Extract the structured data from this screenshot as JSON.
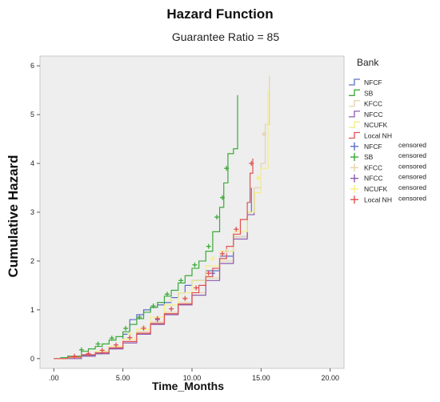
{
  "chart_data": {
    "type": "line",
    "title": "Hazard Function",
    "subtitle": "Guarantee Ratio = 85",
    "xlabel": "Time_Months",
    "ylabel": "Cumulative Hazard",
    "xlim": [
      -1,
      21
    ],
    "ylim": [
      -0.2,
      6.2
    ],
    "x_ticks": [
      {
        "value": 0,
        "label": ".00"
      },
      {
        "value": 5,
        "label": "5.00"
      },
      {
        "value": 10,
        "label": "10.00"
      },
      {
        "value": 15,
        "label": "15.00"
      },
      {
        "value": 20,
        "label": "20.00"
      }
    ],
    "y_ticks": [
      {
        "value": 0,
        "label": "0"
      },
      {
        "value": 1,
        "label": "1"
      },
      {
        "value": 2,
        "label": "2"
      },
      {
        "value": 3,
        "label": "3"
      },
      {
        "value": 4,
        "label": "4"
      },
      {
        "value": 5,
        "label": "5"
      },
      {
        "value": 6,
        "label": "6"
      }
    ],
    "grid": false,
    "legend": {
      "title": "Bank",
      "placement": "right",
      "entries": [
        {
          "label": "NFCF",
          "suffix": "",
          "color": "#5b6fc6",
          "kind": "step"
        },
        {
          "label": "SB",
          "suffix": "",
          "color": "#3aaa3a",
          "kind": "step"
        },
        {
          "label": "KFCC",
          "suffix": "",
          "color": "#e8d2a8",
          "kind": "step"
        },
        {
          "label": "NFCC",
          "suffix": "",
          "color": "#8c5bb0",
          "kind": "step"
        },
        {
          "label": "NCUFK",
          "suffix": "",
          "color": "#f5ef80",
          "kind": "step"
        },
        {
          "label": "Local  NH",
          "suffix": "",
          "color": "#e2504f",
          "kind": "step"
        },
        {
          "label": "NFCF",
          "suffix": "censored",
          "color": "#5b6fc6",
          "kind": "censor"
        },
        {
          "label": "SB",
          "suffix": "censored",
          "color": "#3aaa3a",
          "kind": "censor"
        },
        {
          "label": "KFCC",
          "suffix": "censored",
          "color": "#e8d2a8",
          "kind": "censor"
        },
        {
          "label": "NFCC",
          "suffix": "censored",
          "color": "#8c5bb0",
          "kind": "censor"
        },
        {
          "label": "NCUFK",
          "suffix": "censored",
          "color": "#f5ef80",
          "kind": "censor"
        },
        {
          "label": "Local NH",
          "suffix": "censored",
          "color": "#e2504f",
          "kind": "censor"
        }
      ]
    },
    "series": [
      {
        "name": "NFCF",
        "color": "#5b6fc6",
        "points": [
          [
            0,
            0
          ],
          [
            1,
            0.03
          ],
          [
            2,
            0.06
          ],
          [
            3,
            0.1
          ],
          [
            3.5,
            0.15
          ],
          [
            4,
            0.2
          ],
          [
            4.5,
            0.22
          ],
          [
            5,
            0.5
          ],
          [
            5.5,
            0.8
          ],
          [
            6,
            0.9
          ],
          [
            6.5,
            1.0
          ],
          [
            7,
            1.05
          ],
          [
            7.5,
            1.1
          ],
          [
            8,
            1.15
          ],
          [
            8.5,
            1.25
          ],
          [
            9,
            1.35
          ],
          [
            9.5,
            1.5
          ],
          [
            10,
            1.6
          ],
          [
            11,
            1.8
          ],
          [
            12,
            2.1
          ],
          [
            13,
            2.5
          ],
          [
            14,
            3.0
          ],
          [
            14.3,
            3.5
          ]
        ],
        "censored": []
      },
      {
        "name": "SB",
        "color": "#3aaa3a",
        "points": [
          [
            0,
            0
          ],
          [
            0.5,
            0.02
          ],
          [
            1,
            0.05
          ],
          [
            2,
            0.15
          ],
          [
            2.5,
            0.2
          ],
          [
            3,
            0.25
          ],
          [
            3.5,
            0.3
          ],
          [
            4,
            0.38
          ],
          [
            4.5,
            0.45
          ],
          [
            5,
            0.55
          ],
          [
            5.5,
            0.7
          ],
          [
            6,
            0.82
          ],
          [
            6.5,
            0.95
          ],
          [
            7,
            1.05
          ],
          [
            7.5,
            1.15
          ],
          [
            8,
            1.28
          ],
          [
            8.5,
            1.4
          ],
          [
            9,
            1.55
          ],
          [
            9.5,
            1.7
          ],
          [
            10,
            1.85
          ],
          [
            10.5,
            2.0
          ],
          [
            11,
            2.2
          ],
          [
            11.5,
            2.6
          ],
          [
            12,
            3.1
          ],
          [
            12.3,
            3.6
          ],
          [
            12.6,
            4.2
          ],
          [
            13,
            4.3
          ],
          [
            13.3,
            5.4
          ]
        ],
        "censored": [
          [
            2,
            0.18
          ],
          [
            3.2,
            0.3
          ],
          [
            4.2,
            0.42
          ],
          [
            5.2,
            0.62
          ],
          [
            6.2,
            0.85
          ],
          [
            7.2,
            1.08
          ],
          [
            8.2,
            1.32
          ],
          [
            9.2,
            1.6
          ],
          [
            10.2,
            1.92
          ],
          [
            11.2,
            2.3
          ],
          [
            11.8,
            2.9
          ],
          [
            12.2,
            3.3
          ],
          [
            12.5,
            3.9
          ]
        ]
      },
      {
        "name": "KFCC",
        "color": "#e8d2a8",
        "points": [
          [
            0,
            0
          ],
          [
            1,
            0.02
          ],
          [
            2,
            0.05
          ],
          [
            3,
            0.12
          ],
          [
            4,
            0.2
          ],
          [
            5,
            0.35
          ],
          [
            6,
            0.55
          ],
          [
            7,
            0.75
          ],
          [
            8,
            0.95
          ],
          [
            9,
            1.15
          ],
          [
            10,
            1.35
          ],
          [
            11,
            1.65
          ],
          [
            12,
            2.0
          ],
          [
            13,
            2.5
          ],
          [
            14,
            3.0
          ],
          [
            14.5,
            3.5
          ],
          [
            15,
            4.0
          ],
          [
            15.3,
            4.8
          ],
          [
            15.6,
            5.8
          ]
        ],
        "censored": [
          [
            6.5,
            0.65
          ],
          [
            9.5,
            1.25
          ],
          [
            12.5,
            2.2
          ],
          [
            15.2,
            4.6
          ]
        ]
      },
      {
        "name": "NFCC",
        "color": "#8c5bb0",
        "points": [
          [
            0,
            0
          ],
          [
            2,
            0.05
          ],
          [
            3,
            0.1
          ],
          [
            4,
            0.2
          ],
          [
            5,
            0.32
          ],
          [
            6,
            0.5
          ],
          [
            7,
            0.7
          ],
          [
            8,
            0.9
          ],
          [
            9,
            1.1
          ],
          [
            10,
            1.3
          ],
          [
            11,
            1.6
          ],
          [
            12,
            1.95
          ],
          [
            13,
            2.45
          ],
          [
            14,
            2.95
          ],
          [
            14.5,
            3.4
          ]
        ],
        "censored": [
          [
            7.5,
            0.8
          ],
          [
            11.5,
            1.75
          ]
        ]
      },
      {
        "name": "NCUFK",
        "color": "#f5ef80",
        "points": [
          [
            0,
            0
          ],
          [
            1,
            0.03
          ],
          [
            2,
            0.08
          ],
          [
            3,
            0.15
          ],
          [
            4,
            0.25
          ],
          [
            5,
            0.4
          ],
          [
            6,
            0.6
          ],
          [
            7,
            0.85
          ],
          [
            8,
            1.1
          ],
          [
            9,
            1.35
          ],
          [
            10,
            1.6
          ],
          [
            11,
            1.9
          ],
          [
            12,
            2.2
          ],
          [
            13,
            2.6
          ],
          [
            14,
            3.0
          ],
          [
            14.5,
            3.4
          ],
          [
            15,
            3.9
          ],
          [
            15.5,
            5.5
          ]
        ],
        "censored": [
          [
            5.5,
            0.5
          ],
          [
            8.5,
            1.2
          ],
          [
            11.5,
            2.05
          ],
          [
            14.8,
            3.7
          ]
        ]
      },
      {
        "name": "Local NH",
        "color": "#e2504f",
        "points": [
          [
            0,
            0
          ],
          [
            1,
            0.03
          ],
          [
            2,
            0.08
          ],
          [
            3,
            0.12
          ],
          [
            4,
            0.22
          ],
          [
            5,
            0.35
          ],
          [
            6,
            0.52
          ],
          [
            7,
            0.72
          ],
          [
            8,
            0.92
          ],
          [
            9,
            1.12
          ],
          [
            10,
            1.35
          ],
          [
            10.5,
            1.5
          ],
          [
            11,
            1.68
          ],
          [
            11.5,
            1.85
          ],
          [
            12,
            2.05
          ],
          [
            12.5,
            2.3
          ],
          [
            13,
            2.55
          ],
          [
            13.5,
            2.85
          ],
          [
            14,
            3.2
          ],
          [
            14.2,
            3.8
          ],
          [
            14.4,
            4.1
          ]
        ],
        "censored": [
          [
            1.5,
            0.05
          ],
          [
            2.5,
            0.1
          ],
          [
            3.5,
            0.17
          ],
          [
            4.5,
            0.28
          ],
          [
            5.5,
            0.43
          ],
          [
            6.5,
            0.62
          ],
          [
            7.5,
            0.82
          ],
          [
            8.5,
            1.02
          ],
          [
            9.5,
            1.23
          ],
          [
            10.3,
            1.45
          ],
          [
            11.2,
            1.75
          ],
          [
            12.2,
            2.15
          ],
          [
            13.2,
            2.65
          ],
          [
            14.3,
            4.0
          ]
        ]
      }
    ]
  }
}
